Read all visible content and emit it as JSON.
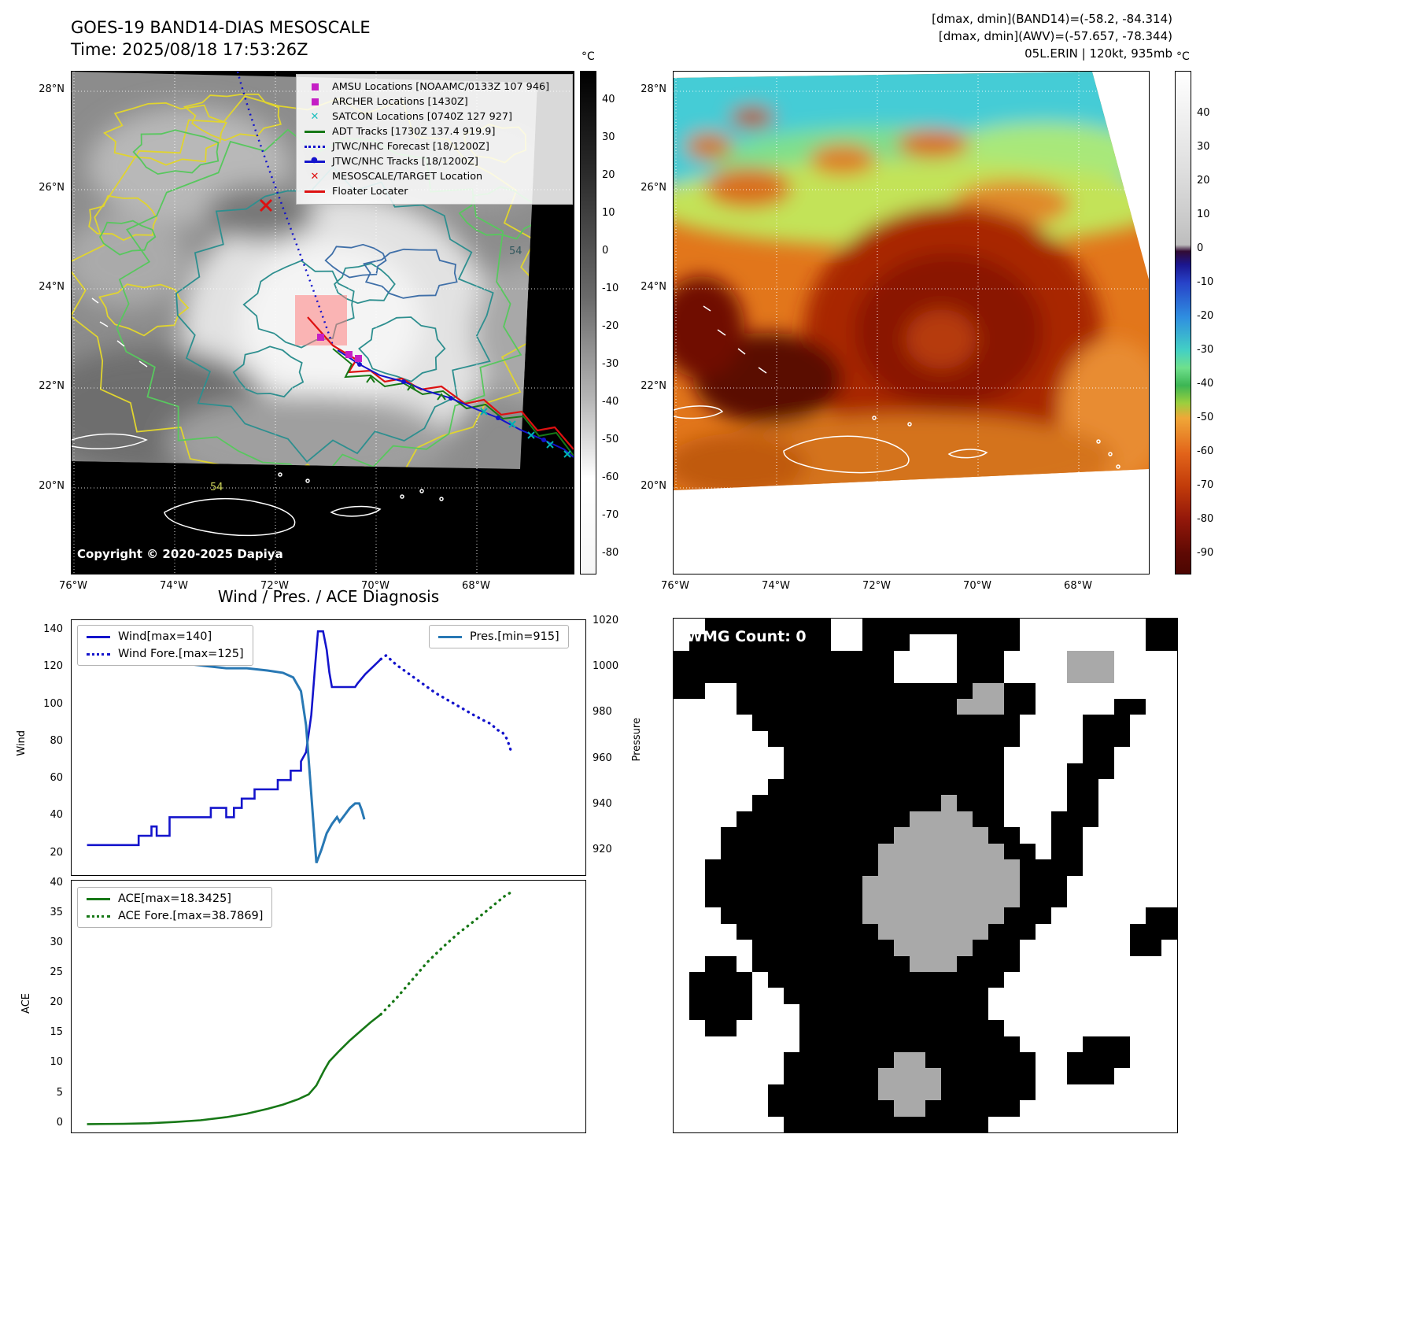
{
  "band14": {
    "title": "GOES-19 BAND14-DIAS MESOSCALE",
    "time": "Time: 2025/08/18 17:53:26Z",
    "copyright": "Copyright © 2020-2025 Dapiya",
    "colorbar_unit": "°C",
    "colorbar_ticks": [
      "40",
      "30",
      "20",
      "10",
      "0",
      "-10",
      "-20",
      "-30",
      "-40",
      "-50",
      "-60",
      "-70",
      "-80"
    ],
    "lat_ticks": [
      "28°N",
      "26°N",
      "24°N",
      "22°N",
      "20°N"
    ],
    "lon_ticks": [
      "76°W",
      "74°W",
      "72°W",
      "70°W",
      "68°W"
    ],
    "contour_labels": [
      "54",
      "54"
    ],
    "legend": [
      {
        "label": "AMSU Locations [NOAAMC/0133Z 107 946]",
        "marker": "square",
        "color": "#c51fc5"
      },
      {
        "label": "ARCHER Locations [1430Z]",
        "marker": "square",
        "color": "#c51fc5"
      },
      {
        "label": "SATCON Locations [0740Z 127 927]",
        "marker": "x",
        "color": "#1fbfbf"
      },
      {
        "label": "ADT Tracks [1730Z 137.4 919.9]",
        "marker": "line",
        "color": "#177817"
      },
      {
        "label": "JTWC/NHC Forecast [18/1200Z]",
        "marker": "dotted",
        "color": "#1414cc"
      },
      {
        "label": "JTWC/NHC Tracks [18/1200Z]",
        "marker": "line-dot",
        "color": "#1414cc"
      },
      {
        "label": "MESOSCALE/TARGET Location",
        "marker": "x",
        "color": "#dd1111"
      },
      {
        "label": "Floater Locater",
        "marker": "line",
        "color": "#dd1111"
      }
    ]
  },
  "awv": {
    "header_line1": "[dmax, dmin](BAND14)=(-58.2, -84.314)",
    "header_line2": "[dmax, dmin](AWV)=(-57.657, -78.344)",
    "header_line3": "05L.ERIN | 120kt, 935mb",
    "colorbar_unit": "°C",
    "colorbar_ticks": [
      "40",
      "30",
      "20",
      "10",
      "0",
      "-10",
      "-20",
      "-30",
      "-40",
      "-50",
      "-60",
      "-70",
      "-80",
      "-90"
    ],
    "lat_ticks": [
      "28°N",
      "26°N",
      "24°N",
      "22°N",
      "20°N"
    ],
    "lon_ticks": [
      "76°W",
      "74°W",
      "72°W",
      "70°W",
      "68°W"
    ]
  },
  "diagnosis": {
    "title": "Wind / Pres. / ACE Diagnosis",
    "ylabel_wind": "Wind",
    "ylabel_pressure": "Pressure",
    "ylabel_ace": "ACE"
  },
  "chart_data": [
    {
      "type": "line",
      "name": "wind_pressure",
      "ylabel_left": "Wind",
      "ylabel_right": "Pressure",
      "yticks_left": [
        20,
        40,
        60,
        80,
        100,
        120,
        140
      ],
      "ylim_left": [
        8,
        146
      ],
      "yticks_right": [
        920,
        940,
        960,
        980,
        1000,
        1020
      ],
      "ylim_right": [
        909,
        1021
      ],
      "xlim": [
        0,
        1
      ],
      "grid": false,
      "series": [
        {
          "name": "Wind",
          "label": "Wind[max=140]",
          "color": "#1414cc",
          "style": "solid",
          "axis": "left",
          "points": [
            [
              0.03,
              25
            ],
            [
              0.13,
              25
            ],
            [
              0.13,
              30
            ],
            [
              0.155,
              30
            ],
            [
              0.155,
              35
            ],
            [
              0.165,
              35
            ],
            [
              0.165,
              30
            ],
            [
              0.19,
              30
            ],
            [
              0.19,
              40
            ],
            [
              0.27,
              40
            ],
            [
              0.27,
              45
            ],
            [
              0.3,
              45
            ],
            [
              0.3,
              40
            ],
            [
              0.315,
              40
            ],
            [
              0.315,
              45
            ],
            [
              0.33,
              45
            ],
            [
              0.33,
              50
            ],
            [
              0.355,
              50
            ],
            [
              0.355,
              55
            ],
            [
              0.4,
              55
            ],
            [
              0.4,
              60
            ],
            [
              0.425,
              60
            ],
            [
              0.425,
              65
            ],
            [
              0.445,
              65
            ],
            [
              0.445,
              70
            ],
            [
              0.455,
              75
            ],
            [
              0.465,
              95
            ],
            [
              0.472,
              120
            ],
            [
              0.478,
              140
            ],
            [
              0.488,
              140
            ],
            [
              0.495,
              130
            ],
            [
              0.5,
              118
            ],
            [
              0.505,
              110
            ],
            [
              0.55,
              110
            ],
            [
              0.555,
              112
            ],
            [
              0.57,
              117
            ],
            [
              0.585,
              121
            ],
            [
              0.6,
              125
            ]
          ]
        },
        {
          "name": "Wind Fore.",
          "label": "Wind Fore.[max=125]",
          "color": "#1414cc",
          "style": "dotted",
          "axis": "left",
          "points": [
            [
              0.6,
              125
            ],
            [
              0.61,
              127
            ],
            [
              0.63,
              122
            ],
            [
              0.655,
              117
            ],
            [
              0.68,
              112
            ],
            [
              0.705,
              107
            ],
            [
              0.73,
              103
            ],
            [
              0.755,
              99
            ],
            [
              0.78,
              95
            ],
            [
              0.8,
              92
            ],
            [
              0.815,
              90
            ],
            [
              0.825,
              87
            ],
            [
              0.835,
              86
            ],
            [
              0.845,
              82
            ],
            [
              0.852,
              76
            ]
          ]
        },
        {
          "name": "Pres.",
          "label": "Pres.[min=915]",
          "color": "#2878b4",
          "style": "solid",
          "axis": "right",
          "points": [
            [
              0.03,
              1007
            ],
            [
              0.06,
              1006
            ],
            [
              0.1,
              1005
            ],
            [
              0.14,
              1004
            ],
            [
              0.18,
              1003
            ],
            [
              0.22,
              1002
            ],
            [
              0.26,
              1001
            ],
            [
              0.3,
              1000
            ],
            [
              0.34,
              1000
            ],
            [
              0.38,
              999
            ],
            [
              0.41,
              998
            ],
            [
              0.43,
              996
            ],
            [
              0.445,
              990
            ],
            [
              0.455,
              975
            ],
            [
              0.465,
              945
            ],
            [
              0.475,
              915
            ],
            [
              0.485,
              921
            ],
            [
              0.495,
              928
            ],
            [
              0.505,
              932
            ],
            [
              0.515,
              935
            ],
            [
              0.52,
              933
            ],
            [
              0.53,
              936
            ],
            [
              0.54,
              939
            ],
            [
              0.55,
              941
            ],
            [
              0.558,
              941
            ],
            [
              0.563,
              938
            ],
            [
              0.568,
              934
            ]
          ]
        }
      ]
    },
    {
      "type": "line",
      "name": "ace",
      "ylabel": "ACE",
      "yticks": [
        0,
        5,
        10,
        15,
        20,
        25,
        30,
        35,
        40
      ],
      "ylim": [
        -1.6,
        40.6
      ],
      "xlim": [
        0,
        1
      ],
      "grid": false,
      "series": [
        {
          "name": "ACE",
          "label": "ACE[max=18.3425]",
          "color": "#177817",
          "style": "solid",
          "points": [
            [
              0.03,
              0.05
            ],
            [
              0.1,
              0.1
            ],
            [
              0.15,
              0.2
            ],
            [
              0.2,
              0.4
            ],
            [
              0.25,
              0.7
            ],
            [
              0.3,
              1.2
            ],
            [
              0.34,
              1.8
            ],
            [
              0.38,
              2.6
            ],
            [
              0.41,
              3.3
            ],
            [
              0.44,
              4.2
            ],
            [
              0.46,
              5.0
            ],
            [
              0.475,
              6.5
            ],
            [
              0.49,
              9.0
            ],
            [
              0.5,
              10.5
            ],
            [
              0.52,
              12.3
            ],
            [
              0.54,
              14.0
            ],
            [
              0.56,
              15.5
            ],
            [
              0.58,
              17.0
            ],
            [
              0.6,
              18.34
            ]
          ]
        },
        {
          "name": "ACE Fore.",
          "label": "ACE Fore.[max=38.7869]",
          "color": "#177817",
          "style": "dotted",
          "points": [
            [
              0.6,
              18.34
            ],
            [
              0.63,
              21.0
            ],
            [
              0.66,
              24.0
            ],
            [
              0.69,
              27.0
            ],
            [
              0.72,
              29.5
            ],
            [
              0.75,
              31.8
            ],
            [
              0.78,
              33.8
            ],
            [
              0.8,
              35.2
            ],
            [
              0.82,
              36.6
            ],
            [
              0.84,
              38.0
            ],
            [
              0.855,
              38.79
            ]
          ]
        }
      ]
    }
  ],
  "wmg": {
    "label": "WMG Count: 0",
    "colors": {
      "B": "#000000",
      "W": "#ffffff",
      "G": "#a9a9a9"
    },
    "grid_rows": [
      "WWBBBBBBBBWWBBBBBBBBBBWWWWWWWWBB",
      "WBBBBBBBBBWWBBBWWWBBBBWWWWWWWWBB",
      "BBBBBBBBBBBBBBWWWWBBBWWWWGGGWWWW",
      "BBBBBBBBBBBBBBWWWWBBBWWWWGGGWWWW",
      "BBWWBBBBBBBBBBBBBBBGGBBWWWWWWWWW",
      "WWWWBBBBBBBBBBBBBBGGGBBWWWWWBBWW",
      "WWWWWBBBBBBBBBBBBBBBBBWWWWBBBWWW",
      "WWWWWWBBBBBBBBBBBBBBBBWWWWBBBWWW",
      "WWWWWWWBBBBBBBBBBBBBBWWWWWBBWWWW",
      "WWWWWWWBBBBBBBBBBBBBBWWWWBBBWWWW",
      "WWWWWWBBBBBBBBBBBBBBBWWWWBBWWWWW",
      "WWWWWBBBBBBBBBBBBGBBBWWWWBBWWWWW",
      "WWWWBBBBBBBBBBBGGGGBBWWWBBBWWWWW",
      "WWWBBBBBBBBBBBGGGGGGBBWWBBWWWWWW",
      "WWWBBBBBBBBBBGGGGGGGGBBWBBWWWWWW",
      "WWBBBBBBBBBBBGGGGGGGGGBBBBWWWWWW",
      "WWBBBBBBBBBBGGGGGGGGGGBBBWWWWWWW",
      "WWBBBBBBBBBBGGGGGGGGGGBBBWWWWWWW",
      "WWWBBBBBBBBBGGGGGGGGGBBBWWWWWWBB",
      "WWWWBBBBBBBBBGGGGGGGBBBWWWWWWBBB",
      "WWWWWBBBBBBBBBGGGGGBBBWWWWWWWBBW",
      "WWBBWBBBBBBBBBBGGGBBBBWWWWWWWWWW",
      "WBBBBWBBBBBBBBBBBBBBBWWWWWWWWWWW",
      "WBBBBWWBBBBBBBBBBBBBWWWWWWWWWWWW",
      "WBBBBWWWBBBBBBBBBBBBWWWWWWWWWWWW",
      "WWBBWWWWBBBBBBBBBBBBBWWWWWWWWWWW",
      "WWWWWWWWBBBBBBBBBBBBBBWWWWBBBWWW",
      "WWWWWWWBBBBBBBGGBBBBBBBWWBBBBWWW",
      "WWWWWWWBBBBBBGGGGBBBBBBWWBBBWWWW",
      "WWWWWWBBBBBBBGGGGBBBBBBWWWWWWWWW",
      "WWWWWWBBBBBBBBGGBBBBBBWWWWWWWWWW",
      "WWWWWWWBBBBBBBBBBBBBWWWWWWWWWWWW"
    ]
  }
}
